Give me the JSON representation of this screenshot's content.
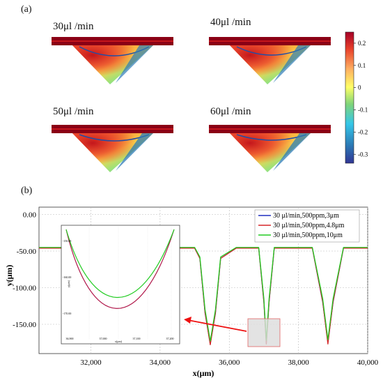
{
  "panel_a": {
    "label": "(a)",
    "simulations": [
      {
        "flow_label": "30μl /min"
      },
      {
        "flow_label": "40μl /min"
      },
      {
        "flow_label": "50μl /min"
      },
      {
        "flow_label": "60μl /min"
      }
    ],
    "colorbar": {
      "ticks": [
        "0.2",
        "0.1",
        "0",
        "-0.1",
        "-0.2",
        "-0.3"
      ],
      "tick_values": [
        0.2,
        0.1,
        0,
        -0.1,
        -0.2,
        -0.3
      ],
      "range": [
        -0.34,
        0.25
      ],
      "colormap": [
        "#313695",
        "#2c7bb6",
        "#35c6e8",
        "#7fd47a",
        "#ffff66",
        "#fdae61",
        "#e8412b",
        "#a50026"
      ]
    }
  },
  "panel_b": {
    "label": "(b)",
    "chart_data": {
      "type": "line",
      "xlabel": "x(μm)",
      "ylabel": "y(μm)",
      "xlim": [
        30500,
        40000
      ],
      "ylim": [
        -190,
        10
      ],
      "x_ticks": [
        32000,
        34000,
        36000,
        38000,
        40000
      ],
      "x_tick_labels": [
        "32,000",
        "34,000",
        "36,000",
        "38,000",
        "40,000"
      ],
      "y_ticks": [
        0,
        -50,
        -100,
        -150
      ],
      "y_tick_labels": [
        "0.00",
        "-50.00",
        "-100.00",
        "-150.00"
      ],
      "grid": true,
      "legend_position": "top-right",
      "series": [
        {
          "name": "30 μl/min,500ppm,3μm",
          "color": "#1f2fbf",
          "x": [
            30500,
            30750,
            35000,
            35150,
            35300,
            35450,
            35600,
            35750,
            36200,
            36850,
            37000,
            37070,
            37150,
            37300,
            37700,
            38400,
            38700,
            38850,
            39000,
            39300,
            40000
          ],
          "y": [
            -46,
            -46,
            -46,
            -60,
            -135,
            -177,
            -135,
            -60,
            -46,
            -46,
            -120,
            -176,
            -120,
            -46,
            -46,
            -46,
            -120,
            -175,
            -120,
            -46,
            -46
          ]
        },
        {
          "name": "30 μl/min,500ppm,4.8μm",
          "color": "#d62728",
          "x": [
            30500,
            30750,
            35000,
            35150,
            35300,
            35450,
            35600,
            35750,
            36200,
            36850,
            37000,
            37070,
            37150,
            37300,
            37700,
            38400,
            38700,
            38850,
            39000,
            39300,
            40000
          ],
          "y": [
            -46,
            -46,
            -46,
            -60,
            -134,
            -178,
            -134,
            -60,
            -46,
            -46,
            -119,
            -177,
            -119,
            -46,
            -46,
            -46,
            -119,
            -177,
            -119,
            -46,
            -46
          ]
        },
        {
          "name": "30 μl/min,500ppm,10μm",
          "color": "#22cc22",
          "x": [
            30500,
            30750,
            35000,
            35150,
            35300,
            35450,
            35600,
            35750,
            36200,
            36850,
            37000,
            37070,
            37150,
            37300,
            37700,
            38400,
            38700,
            38850,
            39000,
            39300,
            40000
          ],
          "y": [
            -45,
            -45,
            -45,
            -58,
            -130,
            -173,
            -130,
            -58,
            -45,
            -45,
            -115,
            -172,
            -115,
            -45,
            -45,
            -45,
            -115,
            -171,
            -115,
            -45,
            -45
          ]
        }
      ],
      "inset": {
        "x_tick_labels": [
          "36,900",
          "37,000",
          "37,100",
          "37,200"
        ],
        "y_tick_labels": [
          "-150.00",
          "-160.00",
          "-170.00"
        ],
        "xlabel": "x(μm)",
        "ylabel": "y(μm)"
      }
    }
  }
}
